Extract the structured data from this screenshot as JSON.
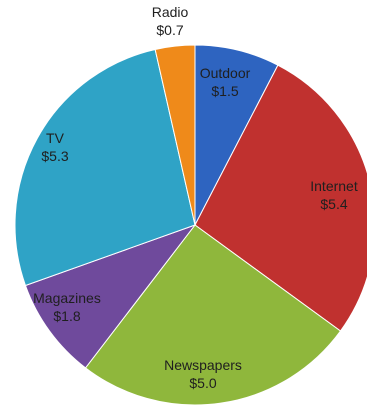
{
  "chart_data": {
    "type": "pie",
    "title": "",
    "slices": [
      {
        "label": "Outdoor",
        "value_label": "$1.5",
        "value": 1.5,
        "color": "#2e64c0"
      },
      {
        "label": "Internet",
        "value_label": "$5.4",
        "value": 5.4,
        "color": "#c0312f"
      },
      {
        "label": "Newspapers",
        "value_label": "$5.0",
        "value": 5.0,
        "color": "#8fb73c"
      },
      {
        "label": "Magazines",
        "value_label": "$1.8",
        "value": 1.8,
        "color": "#6f4a9c"
      },
      {
        "label": "TV",
        "value_label": "$5.3",
        "value": 5.3,
        "color": "#2fa3c6"
      },
      {
        "label": "Radio",
        "value_label": "$0.7",
        "value": 0.7,
        "color": "#ef8a1a"
      }
    ],
    "legend": "none",
    "labels": "on-slice"
  }
}
